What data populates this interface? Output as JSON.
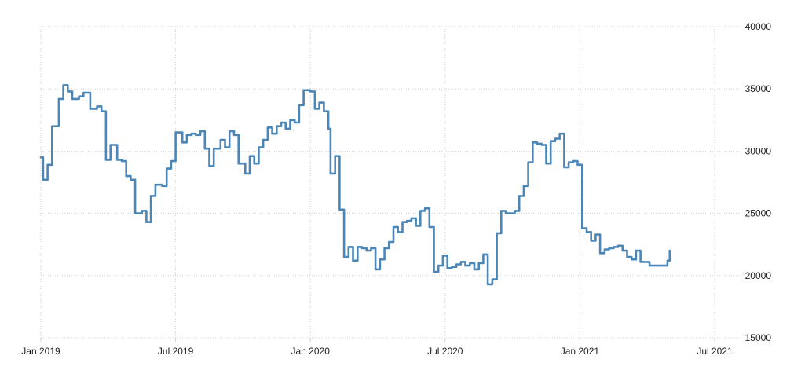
{
  "chart_data": {
    "type": "line",
    "step": true,
    "x_start": "Jan 2019",
    "y_axis_side": "right",
    "ylim": [
      15000,
      40000
    ],
    "y_ticks": [
      15000,
      20000,
      25000,
      30000,
      35000,
      40000
    ],
    "y_tick_labels": [
      "15000",
      "20000",
      "25000",
      "30000",
      "35000",
      "40000"
    ],
    "x_ticks": [
      {
        "label": "Jan 2019",
        "month": 0
      },
      {
        "label": "Jul 2019",
        "month": 6
      },
      {
        "label": "Jan 2020",
        "month": 12
      },
      {
        "label": "Jul 2020",
        "month": 18
      },
      {
        "label": "Jan 2021",
        "month": 24
      },
      {
        "label": "Jul 2021",
        "month": 30
      }
    ],
    "x_range_months": [
      0,
      31.2
    ],
    "grid": true,
    "series_color": "#4a86b8",
    "series": [
      {
        "name": "",
        "points": [
          [
            0.0,
            29500
          ],
          [
            0.1,
            27700
          ],
          [
            0.3,
            28900
          ],
          [
            0.5,
            32000
          ],
          [
            0.8,
            34200
          ],
          [
            1.0,
            35300
          ],
          [
            1.2,
            34800
          ],
          [
            1.4,
            34200
          ],
          [
            1.7,
            34400
          ],
          [
            1.9,
            34700
          ],
          [
            2.2,
            33400
          ],
          [
            2.5,
            33600
          ],
          [
            2.7,
            33200
          ],
          [
            2.9,
            29300
          ],
          [
            3.1,
            30500
          ],
          [
            3.4,
            29300
          ],
          [
            3.6,
            29200
          ],
          [
            3.8,
            28000
          ],
          [
            4.0,
            27700
          ],
          [
            4.2,
            25000
          ],
          [
            4.5,
            25200
          ],
          [
            4.7,
            24300
          ],
          [
            4.9,
            26400
          ],
          [
            5.1,
            27300
          ],
          [
            5.4,
            27200
          ],
          [
            5.6,
            28600
          ],
          [
            5.8,
            29200
          ],
          [
            6.0,
            31500
          ],
          [
            6.3,
            30700
          ],
          [
            6.5,
            31300
          ],
          [
            6.7,
            31400
          ],
          [
            6.9,
            31300
          ],
          [
            7.1,
            31600
          ],
          [
            7.3,
            30200
          ],
          [
            7.5,
            28800
          ],
          [
            7.7,
            30200
          ],
          [
            8.0,
            30900
          ],
          [
            8.2,
            30300
          ],
          [
            8.4,
            31600
          ],
          [
            8.6,
            31300
          ],
          [
            8.8,
            29000
          ],
          [
            9.1,
            28200
          ],
          [
            9.3,
            29600
          ],
          [
            9.5,
            29000
          ],
          [
            9.7,
            30300
          ],
          [
            9.9,
            30900
          ],
          [
            10.1,
            31900
          ],
          [
            10.3,
            31400
          ],
          [
            10.5,
            32000
          ],
          [
            10.7,
            32300
          ],
          [
            10.9,
            31800
          ],
          [
            11.1,
            32500
          ],
          [
            11.3,
            32300
          ],
          [
            11.5,
            33700
          ],
          [
            11.7,
            34900
          ],
          [
            12.0,
            34800
          ],
          [
            12.2,
            33400
          ],
          [
            12.4,
            33900
          ],
          [
            12.6,
            33200
          ],
          [
            12.8,
            31800
          ],
          [
            12.9,
            28200
          ],
          [
            13.1,
            29600
          ],
          [
            13.3,
            25300
          ],
          [
            13.5,
            21500
          ],
          [
            13.7,
            22300
          ],
          [
            13.9,
            21200
          ],
          [
            14.1,
            22300
          ],
          [
            14.3,
            22200
          ],
          [
            14.5,
            22000
          ],
          [
            14.7,
            22200
          ],
          [
            14.9,
            20500
          ],
          [
            15.1,
            21300
          ],
          [
            15.3,
            22200
          ],
          [
            15.5,
            22700
          ],
          [
            15.7,
            23900
          ],
          [
            15.9,
            23500
          ],
          [
            16.1,
            24300
          ],
          [
            16.3,
            24400
          ],
          [
            16.5,
            24600
          ],
          [
            16.7,
            24000
          ],
          [
            16.9,
            25200
          ],
          [
            17.1,
            25400
          ],
          [
            17.3,
            23900
          ],
          [
            17.5,
            20300
          ],
          [
            17.7,
            20800
          ],
          [
            17.9,
            21600
          ],
          [
            18.1,
            20600
          ],
          [
            18.3,
            20700
          ],
          [
            18.5,
            20900
          ],
          [
            18.7,
            21100
          ],
          [
            18.9,
            20800
          ],
          [
            19.1,
            21000
          ],
          [
            19.3,
            20500
          ],
          [
            19.5,
            21000
          ],
          [
            19.7,
            21700
          ],
          [
            19.9,
            19300
          ],
          [
            20.1,
            19700
          ],
          [
            20.3,
            23400
          ],
          [
            20.5,
            25200
          ],
          [
            20.7,
            25000
          ],
          [
            20.9,
            25000
          ],
          [
            21.1,
            25200
          ],
          [
            21.3,
            26400
          ],
          [
            21.5,
            27200
          ],
          [
            21.7,
            29100
          ],
          [
            21.9,
            30700
          ],
          [
            22.1,
            30600
          ],
          [
            22.3,
            30500
          ],
          [
            22.5,
            29000
          ],
          [
            22.7,
            30800
          ],
          [
            22.9,
            31000
          ],
          [
            23.1,
            31400
          ],
          [
            23.3,
            28700
          ],
          [
            23.5,
            29100
          ],
          [
            23.7,
            29200
          ],
          [
            23.9,
            28900
          ],
          [
            24.1,
            23800
          ],
          [
            24.3,
            23500
          ],
          [
            24.5,
            22800
          ],
          [
            24.7,
            23300
          ],
          [
            24.9,
            21800
          ],
          [
            25.1,
            22100
          ],
          [
            25.3,
            22200
          ],
          [
            25.5,
            22300
          ],
          [
            25.7,
            22400
          ],
          [
            25.9,
            22000
          ],
          [
            26.1,
            21500
          ],
          [
            26.3,
            21300
          ],
          [
            26.5,
            22000
          ],
          [
            26.7,
            21100
          ],
          [
            26.9,
            21100
          ],
          [
            27.1,
            20800
          ],
          [
            27.3,
            20800
          ],
          [
            27.5,
            20800
          ],
          [
            27.7,
            20800
          ],
          [
            27.9,
            21200
          ],
          [
            28.0,
            22000
          ]
        ]
      }
    ]
  }
}
